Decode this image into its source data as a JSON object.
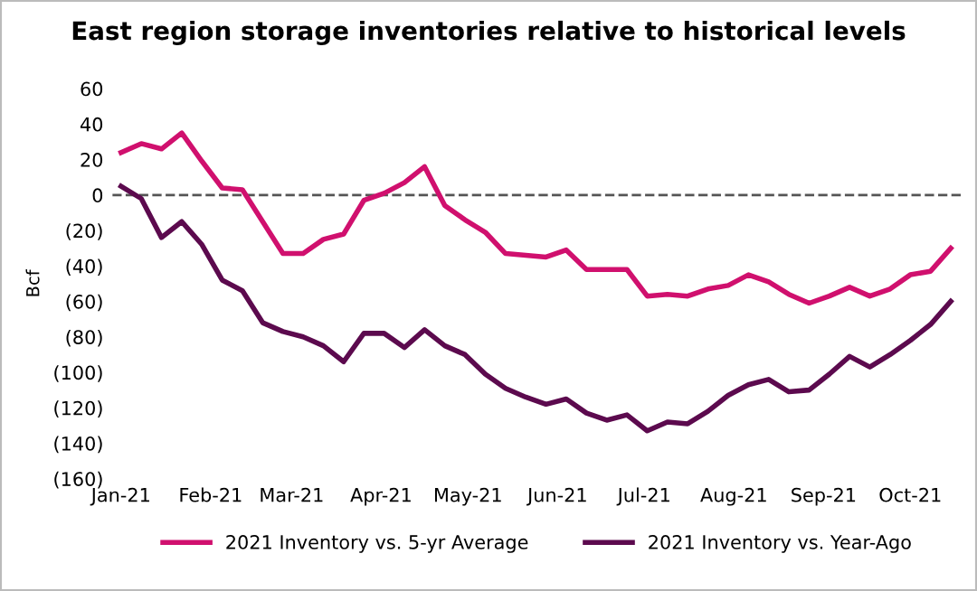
{
  "chart_data": {
    "type": "line",
    "title": "East region storage inventories relative to historical levels",
    "ylabel": "Bcf",
    "x": [
      "2021-01-01",
      "2021-01-08",
      "2021-01-15",
      "2021-01-22",
      "2021-01-29",
      "2021-02-05",
      "2021-02-12",
      "2021-02-19",
      "2021-02-26",
      "2021-03-05",
      "2021-03-12",
      "2021-03-19",
      "2021-03-26",
      "2021-04-02",
      "2021-04-09",
      "2021-04-16",
      "2021-04-23",
      "2021-04-30",
      "2021-05-07",
      "2021-05-14",
      "2021-05-21",
      "2021-05-28",
      "2021-06-04",
      "2021-06-11",
      "2021-06-18",
      "2021-06-25",
      "2021-07-02",
      "2021-07-09",
      "2021-07-16",
      "2021-07-23",
      "2021-07-30",
      "2021-08-06",
      "2021-08-13",
      "2021-08-20",
      "2021-08-27",
      "2021-09-03",
      "2021-09-10",
      "2021-09-17",
      "2021-09-24",
      "2021-10-01",
      "2021-10-08",
      "2021-10-15"
    ],
    "series": [
      {
        "name": "2021 Inventory vs. 5-yr Average",
        "color": "#d0106e",
        "values": [
          24,
          29,
          26,
          35,
          19,
          4,
          3,
          -15,
          -33,
          -33,
          -25,
          -22,
          -3,
          1,
          7,
          16,
          -6,
          -14,
          -21,
          -33,
          -34,
          -35,
          -31,
          -42,
          -42,
          -42,
          -57,
          -56,
          -57,
          -53,
          -51,
          -45,
          -49,
          -56,
          -61,
          -57,
          -52,
          -57,
          -53,
          -45,
          -43,
          -30
        ]
      },
      {
        "name": "2021 Inventory vs. Year-Ago",
        "color": "#5c0a4e",
        "values": [
          5,
          -2,
          -24,
          -15,
          -28,
          -48,
          -54,
          -72,
          -77,
          -80,
          -85,
          -94,
          -78,
          -78,
          -86,
          -76,
          -85,
          -90,
          -101,
          -109,
          -114,
          -118,
          -115,
          -123,
          -127,
          -124,
          -133,
          -128,
          -129,
          -122,
          -113,
          -107,
          -104,
          -111,
          -110,
          -101,
          -91,
          -97,
          -90,
          -82,
          -73,
          -60
        ]
      }
    ],
    "xlim": [
      "2020-12-29",
      "2021-10-19"
    ],
    "xticks": [
      {
        "value": "2021-01-01",
        "label": "Jan-21"
      },
      {
        "value": "2021-02-01",
        "label": "Feb-21"
      },
      {
        "value": "2021-03-01",
        "label": "Mar-21"
      },
      {
        "value": "2021-04-01",
        "label": "Apr-21"
      },
      {
        "value": "2021-05-01",
        "label": "May-21"
      },
      {
        "value": "2021-06-01",
        "label": "Jun-21"
      },
      {
        "value": "2021-07-01",
        "label": "Jul-21"
      },
      {
        "value": "2021-08-01",
        "label": "Aug-21"
      },
      {
        "value": "2021-09-01",
        "label": "Sep-21"
      },
      {
        "value": "2021-10-01",
        "label": "Oct-21"
      }
    ],
    "ylim": [
      -160,
      60
    ],
    "yticks": [
      60,
      40,
      20,
      0,
      {
        "value": -20,
        "label": "(20)"
      },
      {
        "value": -40,
        "label": "(40)"
      },
      {
        "value": -60,
        "label": "(60)"
      },
      {
        "value": -80,
        "label": "(80)"
      },
      {
        "value": -100,
        "label": "(100)"
      },
      {
        "value": -120,
        "label": "(120)"
      },
      {
        "value": -140,
        "label": "(140)"
      },
      {
        "value": -160,
        "label": "(160)"
      }
    ],
    "ref_lines": [
      {
        "axis": "y",
        "value": 0,
        "color": "#555555",
        "line_style": "dashed"
      }
    ],
    "grid": false,
    "legend": "bottom",
    "line_style": "solid",
    "marker": "none"
  }
}
